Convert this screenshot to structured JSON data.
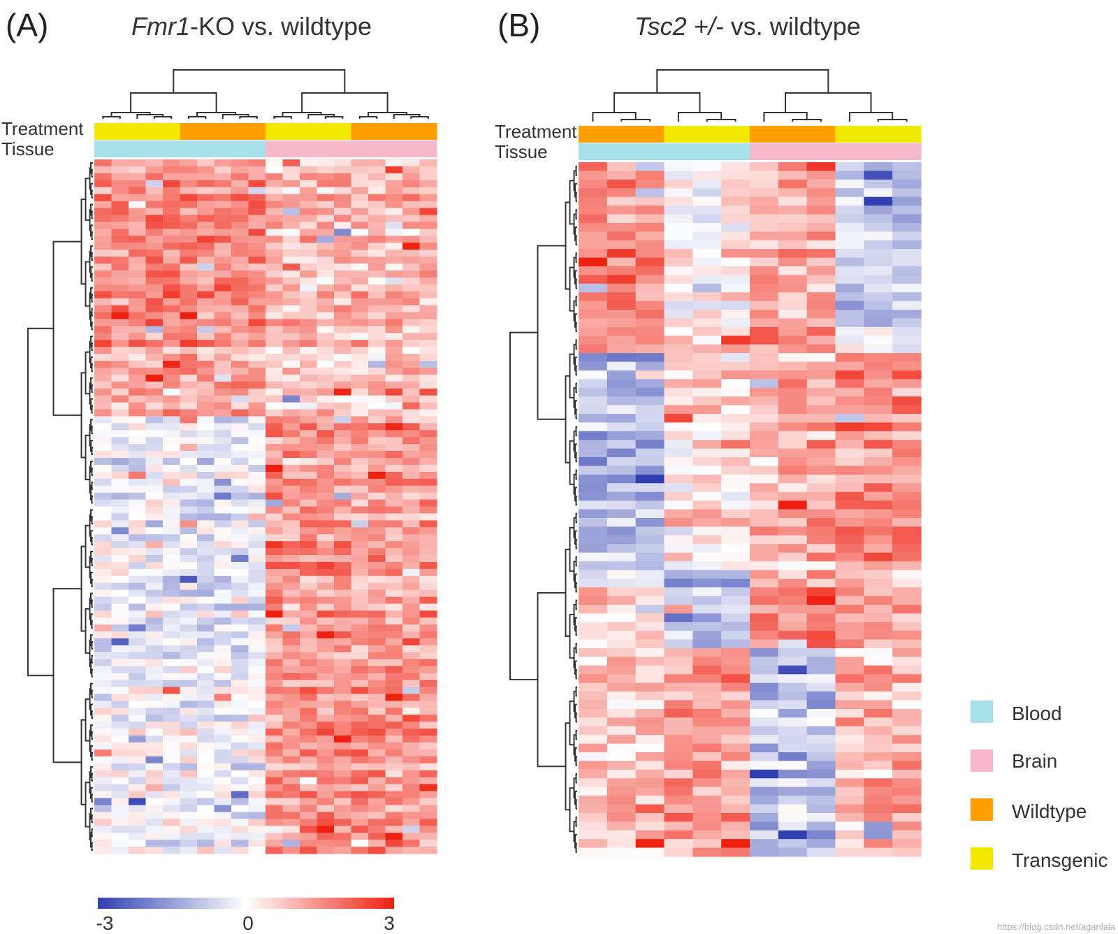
{
  "chart_data": [
    {
      "type": "heatmap",
      "panel": "(A)",
      "title_italic": "Fmr1",
      "title_rest": "-KO vs. wildtype",
      "annotation_rows": [
        "Treatment",
        "Tissue"
      ],
      "n_columns": 20,
      "n_rows": 100,
      "treatment": [
        "Transgenic",
        "Transgenic",
        "Transgenic",
        "Transgenic",
        "Transgenic",
        "Wildtype",
        "Wildtype",
        "Wildtype",
        "Wildtype",
        "Wildtype",
        "Transgenic",
        "Transgenic",
        "Transgenic",
        "Transgenic",
        "Transgenic",
        "Wildtype",
        "Wildtype",
        "Wildtype",
        "Wildtype",
        "Wildtype"
      ],
      "tissue": [
        "Blood",
        "Blood",
        "Blood",
        "Blood",
        "Blood",
        "Blood",
        "Blood",
        "Blood",
        "Blood",
        "Blood",
        "Brain",
        "Brain",
        "Brain",
        "Brain",
        "Brain",
        "Brain",
        "Brain",
        "Brain",
        "Brain",
        "Brain"
      ],
      "row_block_breaks": [
        27,
        37,
        65,
        100
      ],
      "block_means": [
        [
          1.6,
          0.9
        ],
        [
          1.1,
          0.7
        ],
        [
          -0.3,
          1.3
        ],
        [
          -0.2,
          1.4
        ]
      ],
      "noise": 0.75,
      "seed": 17
    },
    {
      "type": "heatmap",
      "panel": "(B)",
      "title_italic": "Tsc2 +/-",
      "title_rest": " vs. wildtype",
      "annotation_rows": [
        "Treatment",
        "Tissue"
      ],
      "n_columns": 12,
      "n_rows": 80,
      "treatment": [
        "Wildtype",
        "Wildtype",
        "Wildtype",
        "Transgenic",
        "Transgenic",
        "Transgenic",
        "Wildtype",
        "Wildtype",
        "Wildtype",
        "Transgenic",
        "Transgenic",
        "Transgenic"
      ],
      "tissue": [
        "Blood",
        "Blood",
        "Blood",
        "Blood",
        "Blood",
        "Blood",
        "Brain",
        "Brain",
        "Brain",
        "Brain",
        "Brain",
        "Brain"
      ],
      "row_block_breaks": [
        22,
        47,
        56,
        80
      ],
      "block_means": [
        [
          1.5,
          0.3,
          1.2,
          -0.6
        ],
        [
          -1.2,
          0.4,
          1.0,
          1.5
        ],
        [
          0.3,
          -1.0,
          1.6,
          1.0
        ],
        [
          0.8,
          1.2,
          -1.0,
          0.9
        ]
      ],
      "noise": 0.8,
      "seed": 41
    }
  ],
  "colorbar": {
    "min": -3,
    "mid": 0,
    "max": 3,
    "tick_labels": [
      "-3",
      "0",
      "3"
    ]
  },
  "colors": {
    "low": "#3040b0",
    "mid": "#ffffff",
    "high": "#ee2010",
    "Blood": "#a8e0e8",
    "Brain": "#f8b8cc",
    "Wildtype": "#ffa000",
    "Transgenic": "#f0e800"
  },
  "legend": [
    {
      "label": "Blood",
      "key": "Blood"
    },
    {
      "label": "Brain",
      "key": "Brain"
    },
    {
      "label": "Wildtype",
      "key": "Wildtype"
    },
    {
      "label": "Transgenic",
      "key": "Transgenic"
    }
  ],
  "watermark": "https://blog.csdn.net/aganlala"
}
